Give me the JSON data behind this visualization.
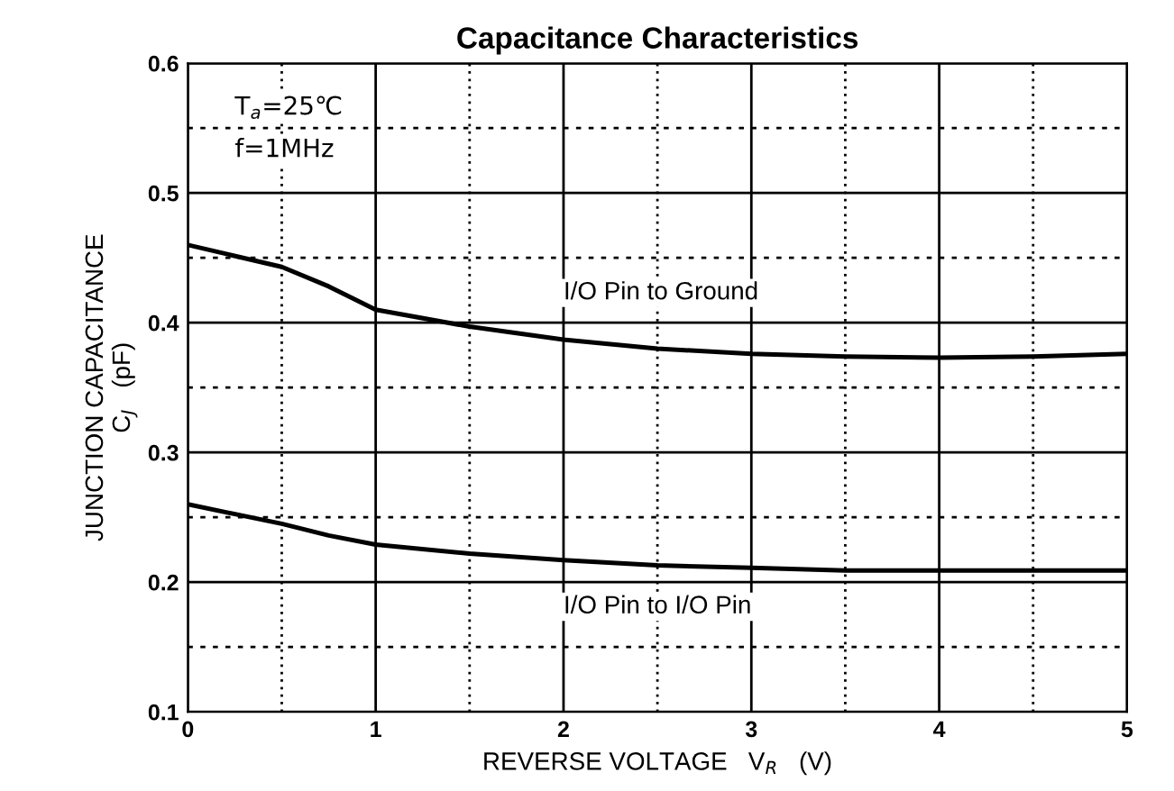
{
  "chart_data": {
    "type": "line",
    "title": "Capacitance Characteristics",
    "xlabel": "REVERSE VOLTAGE   V$_{R}$   (V)",
    "ylabel": "JUNCTION CAPACITANCE\nC$_{J}$   (pF)",
    "x": [
      0,
      0.5,
      0.75,
      1,
      1.5,
      2,
      2.5,
      3,
      3.5,
      4,
      4.5,
      5
    ],
    "series": [
      {
        "name": "I/O Pin to Ground",
        "color": "#000000",
        "values": [
          0.46,
          0.443,
          0.428,
          0.41,
          0.397,
          0.387,
          0.38,
          0.376,
          0.374,
          0.373,
          0.374,
          0.376
        ]
      },
      {
        "name": "I/O Pin to I/O Pin",
        "color": "#000000",
        "values": [
          0.26,
          0.245,
          0.236,
          0.229,
          0.222,
          0.217,
          0.213,
          0.211,
          0.209,
          0.209,
          0.209,
          0.209
        ]
      }
    ],
    "xlim": [
      0,
      5
    ],
    "ylim": [
      0.1,
      0.6
    ],
    "xticks": [
      0,
      {
        "value": 0.5,
        "label": null
      },
      1,
      {
        "value": 1.5,
        "label": null
      },
      2,
      {
        "value": 2.5,
        "label": null
      },
      3,
      {
        "value": 3.5,
        "label": null
      },
      4,
      {
        "value": 4.5,
        "label": null
      },
      5
    ],
    "yticks": [
      0.1,
      {
        "value": 0.15,
        "label": null
      },
      0.2,
      {
        "value": 0.25,
        "label": null
      },
      0.3,
      {
        "value": 0.35,
        "label": null
      },
      0.4,
      {
        "value": 0.45,
        "label": null
      },
      0.5,
      {
        "value": 0.55,
        "label": null
      },
      0.6
    ],
    "grid": true,
    "marker": "none",
    "line_style": "solid",
    "annotations": [
      "T$_{a}$=25℃",
      "f=1MHz"
    ]
  }
}
